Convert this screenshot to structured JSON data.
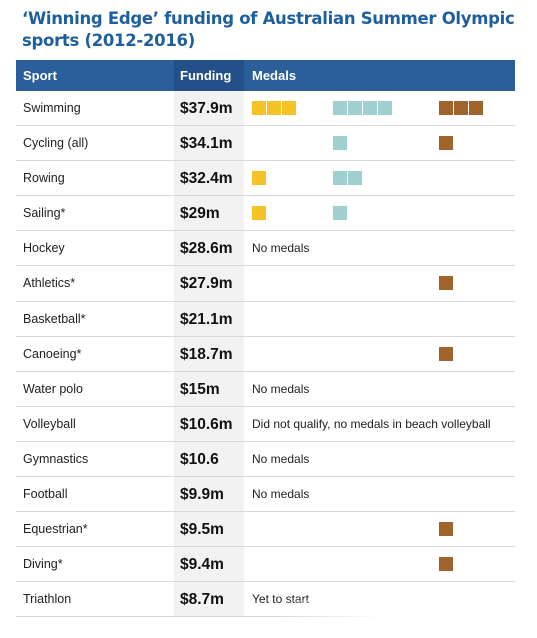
{
  "chart_data": {
    "type": "table",
    "title": "‘Winning Edge’ funding of Australian Summer Olympic sports (2012-2016)",
    "columns": [
      "Sport",
      "Funding",
      "Medals"
    ],
    "colors": {
      "gold": "#f6c326",
      "silver": "#9fcfcf",
      "bronze": "#a0642a",
      "header": "#2b5f9b",
      "title": "#1f5f9e"
    },
    "rows": [
      {
        "sport": "Swimming",
        "funding": "$37.9m",
        "gold": 3,
        "silver": 4,
        "bronze": 3,
        "note": ""
      },
      {
        "sport": "Cycling (all)",
        "funding": "$34.1m",
        "gold": 0,
        "silver": 1,
        "bronze": 1,
        "note": ""
      },
      {
        "sport": "Rowing",
        "funding": "$32.4m",
        "gold": 1,
        "silver": 2,
        "bronze": 0,
        "note": ""
      },
      {
        "sport": "Sailing*",
        "funding": "$29m",
        "gold": 1,
        "silver": 1,
        "bronze": 0,
        "note": ""
      },
      {
        "sport": "Hockey",
        "funding": "$28.6m",
        "gold": 0,
        "silver": 0,
        "bronze": 0,
        "note": "No medals"
      },
      {
        "sport": "Athletics*",
        "funding": "$27.9m",
        "gold": 0,
        "silver": 0,
        "bronze": 1,
        "note": ""
      },
      {
        "sport": "Basketball*",
        "funding": "$21.1m",
        "gold": 0,
        "silver": 0,
        "bronze": 0,
        "note": ""
      },
      {
        "sport": "Canoeing*",
        "funding": "$18.7m",
        "gold": 0,
        "silver": 0,
        "bronze": 1,
        "note": ""
      },
      {
        "sport": "Water polo",
        "funding": "$15m",
        "gold": 0,
        "silver": 0,
        "bronze": 0,
        "note": "No medals"
      },
      {
        "sport": "Volleyball",
        "funding": "$10.6m",
        "gold": 0,
        "silver": 0,
        "bronze": 0,
        "note": "Did not qualify, no medals in beach volleyball"
      },
      {
        "sport": "Gymnastics",
        "funding": "$10.6",
        "gold": 0,
        "silver": 0,
        "bronze": 0,
        "note": "No medals"
      },
      {
        "sport": "Football",
        "funding": "$9.9m",
        "gold": 0,
        "silver": 0,
        "bronze": 0,
        "note": "No medals"
      },
      {
        "sport": "Equestrian*",
        "funding": "$9.5m",
        "gold": 0,
        "silver": 0,
        "bronze": 1,
        "note": ""
      },
      {
        "sport": "Diving*",
        "funding": "$9.4m",
        "gold": 0,
        "silver": 0,
        "bronze": 1,
        "note": ""
      },
      {
        "sport": "Triathlon",
        "funding": "$8.7m",
        "gold": 0,
        "silver": 0,
        "bronze": 0,
        "note": "Yet to start"
      }
    ]
  }
}
